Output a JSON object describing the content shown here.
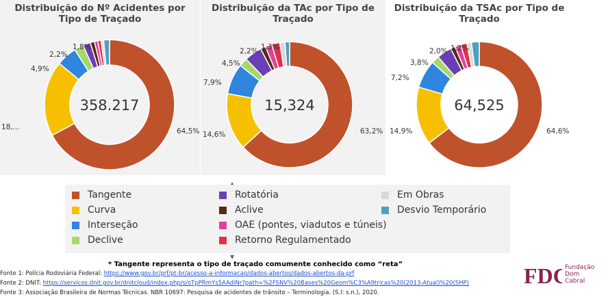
{
  "chart_data": [
    {
      "type": "donut",
      "title": "Distribuição do Nº Acidentes por Tipo de Traçado",
      "center_value": "358.217",
      "categories": [
        "Tangente",
        "Curva",
        "Interseção",
        "Declive",
        "Rotatória",
        "Aclive",
        "OAE (pontes, viadutos e túneis)",
        "Retorno Regulamentado",
        "Em Obras",
        "Desvio Temporário"
      ],
      "values": [
        64.5,
        18.0,
        4.9,
        2.2,
        1.8,
        1.0,
        0.8,
        0.8,
        0.6,
        1.4
      ],
      "labels": [
        "64,5%",
        "18,...",
        "4,9%",
        "2,2%",
        "1,8%"
      ]
    },
    {
      "type": "donut",
      "title": "Distribuição da TAc por Tipo de Traçado",
      "center_value": "15,324",
      "categories": [
        "Tangente",
        "Curva",
        "Interseção",
        "Declive",
        "Rotatória",
        "Aclive",
        "OAE (pontes, viadutos e túneis)",
        "Retorno Regulamentado",
        "Em Obras",
        "Desvio Temporário"
      ],
      "values": [
        63.2,
        14.6,
        7.9,
        2.2,
        4.5,
        1.3,
        1.7,
        2.1,
        1.3,
        1.2
      ],
      "labels": [
        "63,2%",
        "14,6%",
        "7,9%",
        "4,5%",
        "2,2%",
        "1,3%"
      ]
    },
    {
      "type": "donut",
      "title": "Distribuição da TSAc por Tipo de Traçado",
      "center_value": "64,525",
      "categories": [
        "Tangente",
        "Curva",
        "Interseção",
        "Declive",
        "Rotatória",
        "Aclive",
        "OAE (pontes, viadutos e túneis)",
        "Retorno Regulamentado",
        "Em Obras",
        "Desvio Temporário"
      ],
      "values": [
        64.6,
        14.9,
        7.2,
        2.0,
        3.8,
        1.2,
        1.5,
        1.6,
        1.2,
        2.0
      ],
      "labels": [
        "64,6%",
        "14,9%",
        "7,2%",
        "3,8%",
        "2,0%",
        "1,2%"
      ]
    }
  ],
  "legend": {
    "items": [
      {
        "label": "Tangente",
        "color": "#c0522b"
      },
      {
        "label": "Curva",
        "color": "#f6c000"
      },
      {
        "label": "Interseção",
        "color": "#2e86de"
      },
      {
        "label": "Declive",
        "color": "#a6d96a"
      },
      {
        "label": "Rotatória",
        "color": "#6a3fb5"
      },
      {
        "label": "Aclive",
        "color": "#5a2a14"
      },
      {
        "label": "OAE (pontes, viadutos e túneis)",
        "color": "#e040a0"
      },
      {
        "label": "Retorno Regulamentado",
        "color": "#e0304a"
      },
      {
        "label": "Em Obras",
        "color": "#d9d9d9"
      },
      {
        "label": "Desvio Temporário",
        "color": "#4fa0c0"
      }
    ]
  },
  "note": "* Tangente representa o tipo de traçado comumente conhecido como “reta”",
  "sources": [
    {
      "prefix": "Fonte 1: Polícia Rodoviária Federal: ",
      "link": "https://www.gov.br/prf/pt-br/acesso-a-informacao/dados-abertos/dados-abertos-da-prf",
      "suffix": ""
    },
    {
      "prefix": "Fonte 2: DNIT: ",
      "link": "https://servicos.dnit.gov.br/dnitcloud/index.php/s/oTpPRmYs5AAdiNr?path=%2FSNV%20Bases%20Geom%C3%A9tricas%20(2013-Atual)%20(SHP)",
      "suffix": ""
    },
    {
      "prefix": "Fonte 3: Associação Brasileira de Normas Técnicas. NBR 10697: Pesquisa de acidentes de trânsito – Terminologia. (S.l: s.n.), 2020.",
      "link": "",
      "suffix": ""
    }
  ],
  "logo": {
    "mark": "FDC",
    "line1": "Fundação",
    "line2": "Dom",
    "line3": "Cabral",
    "color": "#8a2252"
  }
}
